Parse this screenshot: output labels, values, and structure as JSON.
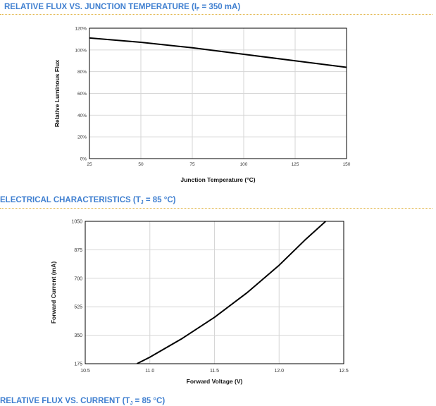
{
  "sections": [
    {
      "title_main": "RELATIVE FLUX VS. JUNCTION TEMPERATURE (I",
      "title_sub": "F",
      "title_tail": " = 350 mA)"
    },
    {
      "title_main": "ELECTRICAL CHARACTERISTICS (T",
      "title_sub": "J",
      "title_tail": " = 85 °C)"
    },
    {
      "title_main": "RELATIVE FLUX VS. CURRENT (T",
      "title_sub": "J",
      "title_tail": " = 85 °C)"
    }
  ],
  "colors": {
    "title": "#3f7fd0",
    "rule": "#e3b64a",
    "grid": "#d6d6d6",
    "line": "#000000"
  },
  "chart_data": [
    {
      "type": "line",
      "xlabel": "Junction Temperature (°C)",
      "ylabel": "Relative Luminous Flux",
      "xlim": [
        25,
        150
      ],
      "ylim": [
        0,
        120
      ],
      "x_ticks": [
        "25",
        "50",
        "75",
        "100",
        "125",
        "150"
      ],
      "y_ticks": [
        "0%",
        "20%",
        "40%",
        "60%",
        "80%",
        "100%",
        "120%"
      ],
      "grid": true,
      "series": [
        {
          "x": [
            25,
            50,
            75,
            100,
            125,
            150
          ],
          "y": [
            111,
            107,
            102,
            96,
            90,
            84
          ]
        }
      ]
    },
    {
      "type": "line",
      "xlabel": "Forward Voltage (V)",
      "ylabel": "Forward Current (mA)",
      "xlim": [
        10.5,
        12.5
      ],
      "ylim": [
        175,
        1050
      ],
      "x_ticks": [
        "10.5",
        "11.0",
        "11.5",
        "12.0",
        "12.5"
      ],
      "y_ticks": [
        "175",
        "350",
        "525",
        "700",
        "875",
        "1050"
      ],
      "grid": true,
      "series": [
        {
          "x": [
            10.9,
            11.0,
            11.25,
            11.5,
            11.75,
            12.0,
            12.2,
            12.36
          ],
          "y": [
            175,
            215,
            330,
            460,
            610,
            780,
            935,
            1050
          ]
        }
      ]
    }
  ]
}
